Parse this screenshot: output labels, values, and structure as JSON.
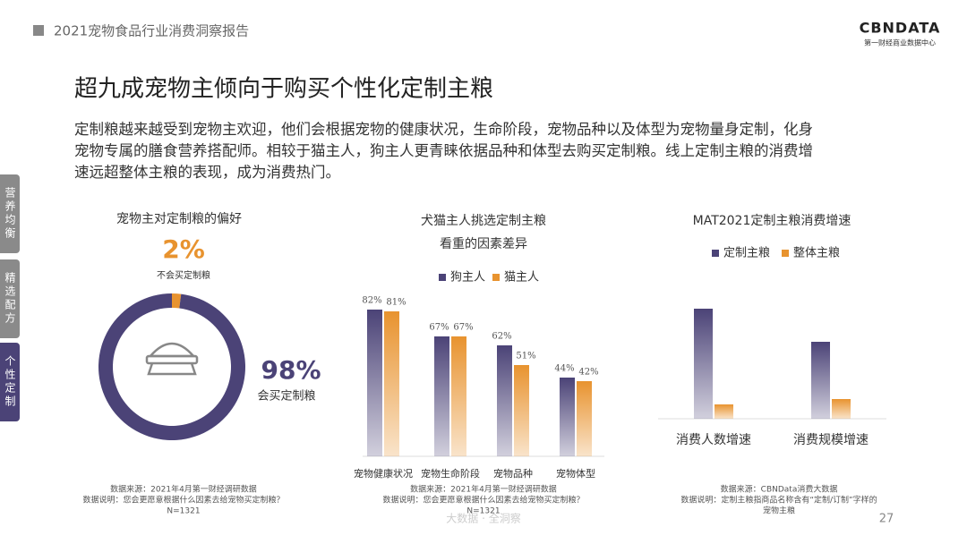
{
  "header": {
    "report": "2021宠物食品行业消费洞察报告",
    "logo": "CBNDATA",
    "logo_sub": "第一财经商业数据中心"
  },
  "title": "超九成宠物主倾向于购买个性化定制主粮",
  "paragraph": [
    "定制粮越来越受到宠物主欢迎，他们会根据宠物的健康状况，生命阶段，宠物品种以及体型为宠物量身定制，化身",
    "宠物专属的膳食营养搭配师。相较于猫主人，狗主人更青睐依据品种和体型去购买定制粮。线上定制主粮的消费增",
    "速远超整体主粮的表现，成为消费热门。"
  ],
  "tabs": [
    "营养均衡",
    "精选配方",
    "个性定制"
  ],
  "chart_data": [
    {
      "type": "pie",
      "title": "宠物主对定制粮的偏好",
      "categories": [
        "不会买定制粮",
        "会买定制粮"
      ],
      "values": [
        2,
        98
      ],
      "value_labels": [
        "2%",
        "98%"
      ],
      "colors": [
        "#e8932f",
        "#4b4377"
      ],
      "notes": [
        "数据来源：2021年4月第一财经调研数据",
        "数据说明：您会更愿意根据什么因素去给宠物买定制粮？",
        "N=1321"
      ]
    },
    {
      "type": "bar",
      "title": "犬猫主人挑选定制主粮",
      "subtitle": "看重的因素差异",
      "categories": [
        "宠物健康状况",
        "宠物生命阶段",
        "宠物品种",
        "宠物体型"
      ],
      "series": [
        {
          "name": "狗主人",
          "color": "#4b4377",
          "values": [
            82,
            67,
            62,
            44
          ],
          "value_labels": [
            "82%",
            "67%",
            "62%",
            "44%"
          ]
        },
        {
          "name": "猫主人",
          "color": "#e8932f",
          "values": [
            81,
            67,
            51,
            42
          ],
          "value_labels": [
            "81%",
            "67%",
            "51%",
            "42%"
          ]
        }
      ],
      "notes": [
        "数据来源：2021年4月第一财经调研数据",
        "数据说明：您会更愿意根据什么因素去给宠物买定制粮？",
        "N=1321"
      ]
    },
    {
      "type": "bar",
      "title": "MAT2021定制主粮消费增速",
      "categories": [
        "消费人数增速",
        "消费规模增速"
      ],
      "series": [
        {
          "name": "定制主粮",
          "color": "#4b4377",
          "values": [
            123,
            86
          ]
        },
        {
          "name": "整体主粮",
          "color": "#e8932f",
          "values": [
            16,
            22
          ]
        }
      ],
      "notes": [
        "数据来源：CBNData消费大数据",
        "数据说明：定制主粮指商品名称含有“定制/订制”字样的",
        "宠物主粮"
      ]
    }
  ],
  "footer": {
    "page": "27",
    "watermark": "大数据 · 全洞察"
  }
}
